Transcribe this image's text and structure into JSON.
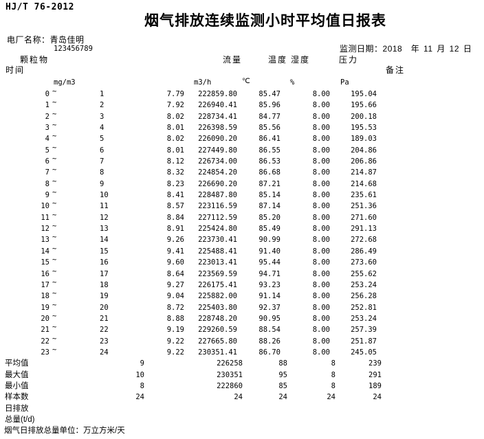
{
  "page": {
    "standard_code": "HJ/T 76-2012",
    "title": "烟气排放连续监测小时平均值日报表",
    "plant_label": "电厂名称：",
    "plant_name": "青岛佳明",
    "stray_tick": "`",
    "plant_code": "123456789",
    "date_label": "监测日期：",
    "date_value": "2018　年 11 月 12 日",
    "footer_note": "烟气日排放总量单位：万立方米/天"
  },
  "columns": {
    "time": "时间",
    "dust": "颗粒物",
    "flow": "流量",
    "temperature": "温度",
    "humidity": "湿度",
    "pressure": "压力",
    "remark": "备注",
    "units": {
      "dust": "mg/m3",
      "flow": "m3/h",
      "temperature": "℃",
      "humidity": "%",
      "pressure": "Pa"
    }
  },
  "table": {
    "tilde": "~",
    "rows": [
      {
        "start": "0",
        "end": "1",
        "dust": "7.79",
        "flow": "222859.80",
        "temp": "85.47",
        "hum": "8.00",
        "pres": "195.04"
      },
      {
        "start": "1",
        "end": "2",
        "dust": "7.92",
        "flow": "226940.41",
        "temp": "85.96",
        "hum": "8.00",
        "pres": "195.66"
      },
      {
        "start": "2",
        "end": "3",
        "dust": "8.02",
        "flow": "228734.41",
        "temp": "84.77",
        "hum": "8.00",
        "pres": "200.18"
      },
      {
        "start": "3",
        "end": "4",
        "dust": "8.01",
        "flow": "226398.59",
        "temp": "85.56",
        "hum": "8.00",
        "pres": "195.53"
      },
      {
        "start": "4",
        "end": "5",
        "dust": "8.02",
        "flow": "226090.20",
        "temp": "86.41",
        "hum": "8.00",
        "pres": "189.03"
      },
      {
        "start": "5",
        "end": "6",
        "dust": "8.01",
        "flow": "227449.80",
        "temp": "86.55",
        "hum": "8.00",
        "pres": "204.86"
      },
      {
        "start": "6",
        "end": "7",
        "dust": "8.12",
        "flow": "226734.00",
        "temp": "86.53",
        "hum": "8.00",
        "pres": "206.86"
      },
      {
        "start": "7",
        "end": "8",
        "dust": "8.32",
        "flow": "224854.20",
        "temp": "86.68",
        "hum": "8.00",
        "pres": "214.87"
      },
      {
        "start": "8",
        "end": "9",
        "dust": "8.23",
        "flow": "226690.20",
        "temp": "87.21",
        "hum": "8.00",
        "pres": "214.68"
      },
      {
        "start": "9",
        "end": "10",
        "dust": "8.41",
        "flow": "228487.80",
        "temp": "85.14",
        "hum": "8.00",
        "pres": "235.61"
      },
      {
        "start": "10",
        "end": "11",
        "dust": "8.57",
        "flow": "223116.59",
        "temp": "87.14",
        "hum": "8.00",
        "pres": "251.36"
      },
      {
        "start": "11",
        "end": "12",
        "dust": "8.84",
        "flow": "227112.59",
        "temp": "85.20",
        "hum": "8.00",
        "pres": "271.60"
      },
      {
        "start": "12",
        "end": "13",
        "dust": "8.91",
        "flow": "225424.80",
        "temp": "85.49",
        "hum": "8.00",
        "pres": "291.13"
      },
      {
        "start": "13",
        "end": "14",
        "dust": "9.26",
        "flow": "223730.41",
        "temp": "90.99",
        "hum": "8.00",
        "pres": "272.68"
      },
      {
        "start": "14",
        "end": "15",
        "dust": "9.41",
        "flow": "225488.41",
        "temp": "91.40",
        "hum": "8.00",
        "pres": "286.49"
      },
      {
        "start": "15",
        "end": "16",
        "dust": "9.60",
        "flow": "223013.41",
        "temp": "95.44",
        "hum": "8.00",
        "pres": "273.60"
      },
      {
        "start": "16",
        "end": "17",
        "dust": "8.64",
        "flow": "223569.59",
        "temp": "94.71",
        "hum": "8.00",
        "pres": "255.62"
      },
      {
        "start": "17",
        "end": "18",
        "dust": "9.27",
        "flow": "226175.41",
        "temp": "93.23",
        "hum": "8.00",
        "pres": "253.24"
      },
      {
        "start": "18",
        "end": "19",
        "dust": "9.04",
        "flow": "225882.00",
        "temp": "91.14",
        "hum": "8.00",
        "pres": "256.28"
      },
      {
        "start": "19",
        "end": "20",
        "dust": "8.72",
        "flow": "225403.80",
        "temp": "92.37",
        "hum": "8.00",
        "pres": "252.81"
      },
      {
        "start": "20",
        "end": "21",
        "dust": "8.88",
        "flow": "228748.20",
        "temp": "90.95",
        "hum": "8.00",
        "pres": "253.24"
      },
      {
        "start": "21",
        "end": "22",
        "dust": "9.19",
        "flow": "229260.59",
        "temp": "88.54",
        "hum": "8.00",
        "pres": "257.39"
      },
      {
        "start": "22",
        "end": "23",
        "dust": "9.22",
        "flow": "227665.80",
        "temp": "88.26",
        "hum": "8.00",
        "pres": "251.87"
      },
      {
        "start": "23",
        "end": "24",
        "dust": "9.22",
        "flow": "230351.41",
        "temp": "86.70",
        "hum": "8.00",
        "pres": "245.05"
      }
    ],
    "summary": [
      {
        "label": "平均值",
        "dust": "9",
        "flow": "226258",
        "temp": "88",
        "hum": "8",
        "pres": "239"
      },
      {
        "label": "最大值",
        "dust": "10",
        "flow": "230351",
        "temp": "95",
        "hum": "8",
        "pres": "291"
      },
      {
        "label": "最小值",
        "dust": "8",
        "flow": "222860",
        "temp": "85",
        "hum": "8",
        "pres": "189"
      },
      {
        "label": "样本数",
        "dust": "24",
        "flow": "24",
        "temp": "24",
        "hum": "24",
        "pres": "24"
      },
      {
        "label": "日排放",
        "dust": "",
        "flow": "",
        "temp": "",
        "hum": "",
        "pres": ""
      },
      {
        "label": "总量(t/d)",
        "dust": "",
        "flow": "",
        "temp": "",
        "hum": "",
        "pres": ""
      }
    ]
  }
}
